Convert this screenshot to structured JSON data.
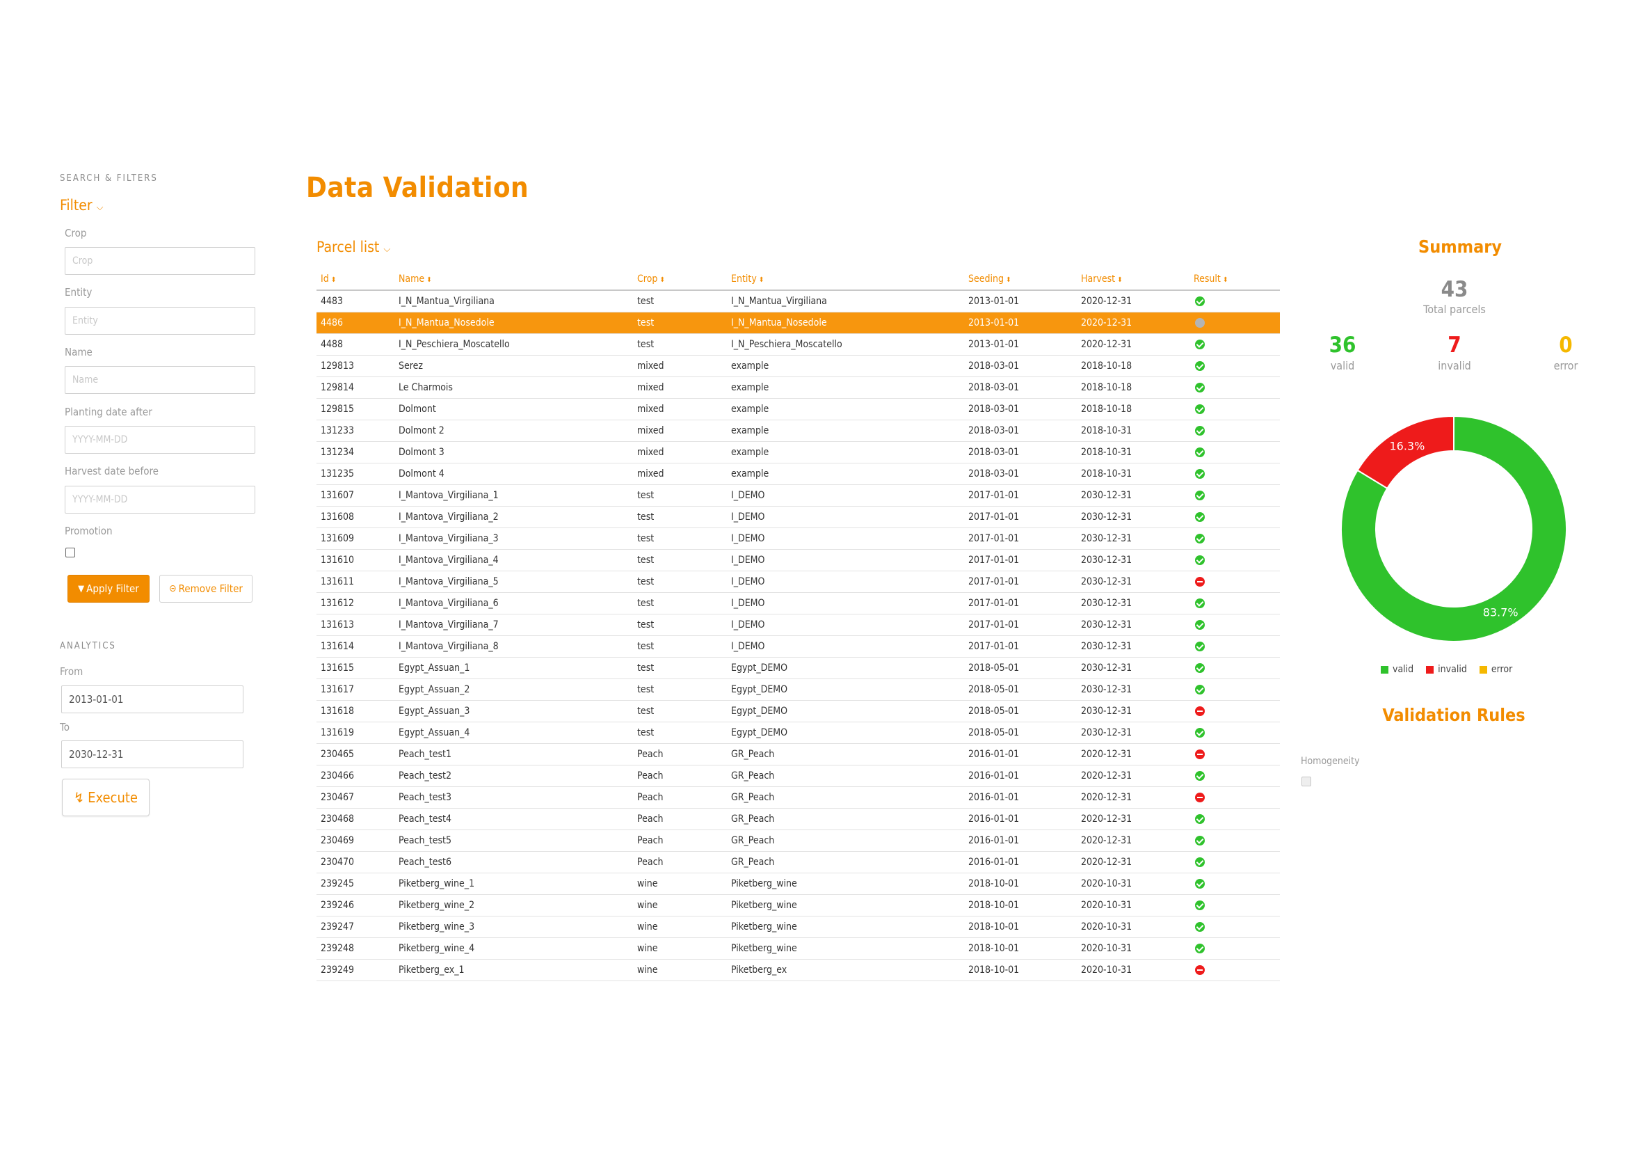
{
  "sidebar": {
    "section_title": "SEARCH & FILTERS",
    "filter_toggle": "Filter",
    "fields": {
      "crop": {
        "label": "Crop",
        "placeholder": "Crop"
      },
      "entity": {
        "label": "Entity",
        "placeholder": "Entity"
      },
      "name": {
        "label": "Name",
        "placeholder": "Name"
      },
      "planting": {
        "label": "Planting date after",
        "placeholder": "YYYY-MM-DD"
      },
      "harvest": {
        "label": "Harvest date before",
        "placeholder": "YYYY-MM-DD"
      },
      "promotion": {
        "label": "Promotion"
      }
    },
    "apply_filter": "Apply Filter",
    "remove_filter": "Remove Filter",
    "analytics_title": "ANALYTICS",
    "from_label": "From",
    "from_value": "2013-01-01",
    "to_label": "To",
    "to_value": "2030-12-31",
    "execute": "Execute"
  },
  "main": {
    "title": "Data Validation",
    "parcel_list": "Parcel list",
    "columns": [
      "Id",
      "Name",
      "Crop",
      "Entity",
      "Seeding",
      "Harvest",
      "Result"
    ],
    "selected_row": 1,
    "rows": [
      [
        "4483",
        "I_N_Mantua_Virgiliana",
        "test",
        "I_N_Mantua_Virgiliana",
        "2013-01-01",
        "2020-12-31",
        "valid"
      ],
      [
        "4486",
        "I_N_Mantua_Nosedole",
        "test",
        "I_N_Mantua_Nosedole",
        "2013-01-01",
        "2020-12-31",
        "pending"
      ],
      [
        "4488",
        "I_N_Peschiera_Moscatello",
        "test",
        "I_N_Peschiera_Moscatello",
        "2013-01-01",
        "2020-12-31",
        "valid"
      ],
      [
        "129813",
        "Serez",
        "mixed",
        "example",
        "2018-03-01",
        "2018-10-18",
        "valid"
      ],
      [
        "129814",
        "Le Charmois",
        "mixed",
        "example",
        "2018-03-01",
        "2018-10-18",
        "valid"
      ],
      [
        "129815",
        "Dolmont",
        "mixed",
        "example",
        "2018-03-01",
        "2018-10-18",
        "valid"
      ],
      [
        "131233",
        "Dolmont 2",
        "mixed",
        "example",
        "2018-03-01",
        "2018-10-31",
        "valid"
      ],
      [
        "131234",
        "Dolmont 3",
        "mixed",
        "example",
        "2018-03-01",
        "2018-10-31",
        "valid"
      ],
      [
        "131235",
        "Dolmont 4",
        "mixed",
        "example",
        "2018-03-01",
        "2018-10-31",
        "valid"
      ],
      [
        "131607",
        "I_Mantova_Virgiliana_1",
        "test",
        "I_DEMO",
        "2017-01-01",
        "2030-12-31",
        "valid"
      ],
      [
        "131608",
        "I_Mantova_Virgiliana_2",
        "test",
        "I_DEMO",
        "2017-01-01",
        "2030-12-31",
        "valid"
      ],
      [
        "131609",
        "I_Mantova_Virgiliana_3",
        "test",
        "I_DEMO",
        "2017-01-01",
        "2030-12-31",
        "valid"
      ],
      [
        "131610",
        "I_Mantova_Virgiliana_4",
        "test",
        "I_DEMO",
        "2017-01-01",
        "2030-12-31",
        "valid"
      ],
      [
        "131611",
        "I_Mantova_Virgiliana_5",
        "test",
        "I_DEMO",
        "2017-01-01",
        "2030-12-31",
        "invalid"
      ],
      [
        "131612",
        "I_Mantova_Virgiliana_6",
        "test",
        "I_DEMO",
        "2017-01-01",
        "2030-12-31",
        "valid"
      ],
      [
        "131613",
        "I_Mantova_Virgiliana_7",
        "test",
        "I_DEMO",
        "2017-01-01",
        "2030-12-31",
        "valid"
      ],
      [
        "131614",
        "I_Mantova_Virgiliana_8",
        "test",
        "I_DEMO",
        "2017-01-01",
        "2030-12-31",
        "valid"
      ],
      [
        "131615",
        "Egypt_Assuan_1",
        "test",
        "Egypt_DEMO",
        "2018-05-01",
        "2030-12-31",
        "valid"
      ],
      [
        "131617",
        "Egypt_Assuan_2",
        "test",
        "Egypt_DEMO",
        "2018-05-01",
        "2030-12-31",
        "valid"
      ],
      [
        "131618",
        "Egypt_Assuan_3",
        "test",
        "Egypt_DEMO",
        "2018-05-01",
        "2030-12-31",
        "invalid"
      ],
      [
        "131619",
        "Egypt_Assuan_4",
        "test",
        "Egypt_DEMO",
        "2018-05-01",
        "2030-12-31",
        "valid"
      ],
      [
        "230465",
        "Peach_test1",
        "Peach",
        "GR_Peach",
        "2016-01-01",
        "2020-12-31",
        "invalid"
      ],
      [
        "230466",
        "Peach_test2",
        "Peach",
        "GR_Peach",
        "2016-01-01",
        "2020-12-31",
        "valid"
      ],
      [
        "230467",
        "Peach_test3",
        "Peach",
        "GR_Peach",
        "2016-01-01",
        "2020-12-31",
        "invalid"
      ],
      [
        "230468",
        "Peach_test4",
        "Peach",
        "GR_Peach",
        "2016-01-01",
        "2020-12-31",
        "valid"
      ],
      [
        "230469",
        "Peach_test5",
        "Peach",
        "GR_Peach",
        "2016-01-01",
        "2020-12-31",
        "valid"
      ],
      [
        "230470",
        "Peach_test6",
        "Peach",
        "GR_Peach",
        "2016-01-01",
        "2020-12-31",
        "valid"
      ],
      [
        "239245",
        "Piketberg_wine_1",
        "wine",
        "Piketberg_wine",
        "2018-10-01",
        "2020-10-31",
        "valid"
      ],
      [
        "239246",
        "Piketberg_wine_2",
        "wine",
        "Piketberg_wine",
        "2018-10-01",
        "2020-10-31",
        "valid"
      ],
      [
        "239247",
        "Piketberg_wine_3",
        "wine",
        "Piketberg_wine",
        "2018-10-01",
        "2020-10-31",
        "valid"
      ],
      [
        "239248",
        "Piketberg_wine_4",
        "wine",
        "Piketberg_wine",
        "2018-10-01",
        "2020-10-31",
        "valid"
      ],
      [
        "239249",
        "Piketberg_ex_1",
        "wine",
        "Piketberg_ex",
        "2018-10-01",
        "2020-10-31",
        "invalid"
      ]
    ]
  },
  "summary": {
    "title": "Summary",
    "total": "43",
    "total_label": "Total parcels",
    "valid": "36",
    "valid_label": "valid",
    "invalid": "7",
    "invalid_label": "invalid",
    "error": "0",
    "error_label": "error",
    "rules_title": "Validation Rules",
    "rule_label": "Homogeneity"
  },
  "colors": {
    "accent": "#f28c00",
    "valid": "#2fc22c",
    "invalid": "#ee1b1b",
    "error": "#f5b800",
    "selected_row": "#f7960e"
  },
  "chart_data": {
    "type": "pie",
    "categories": [
      "valid",
      "invalid",
      "error"
    ],
    "values": [
      83.7,
      16.3,
      0
    ],
    "data_labels": [
      "83.7%",
      "16.3%",
      ""
    ],
    "colors": [
      "#2fc22c",
      "#ee1b1b",
      "#f5b800"
    ],
    "legend_position": "bottom"
  }
}
